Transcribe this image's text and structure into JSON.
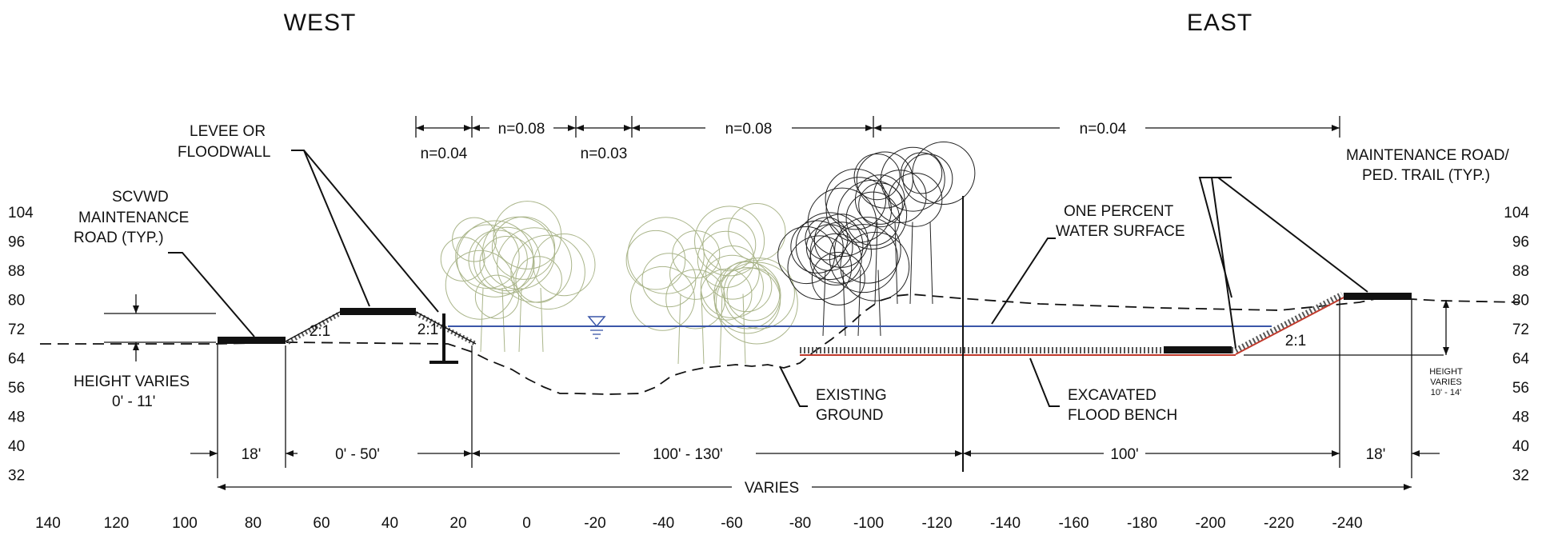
{
  "directions": {
    "west": "WEST",
    "east": "EAST"
  },
  "roughness": {
    "n1": "n=0.04",
    "n2": "n=0.08",
    "n3": "n=0.03",
    "n4": "n=0.08",
    "n5": "n=0.04"
  },
  "callouts": {
    "levee_l1": "LEVEE OR",
    "levee_l2": "FLOODWALL",
    "scvwd_l1": "SCVWD",
    "scvwd_l2": "MAINTENANCE",
    "scvwd_l3": "ROAD (TYP.)",
    "maint_l1": "MAINTENANCE ROAD/",
    "maint_l2": "PED. TRAIL (TYP.)",
    "water_l1": "ONE PERCENT",
    "water_l2": "WATER SURFACE",
    "ground_l1": "EXISTING",
    "ground_l2": "GROUND",
    "bench_l1": "EXCAVATED",
    "bench_l2": "FLOOD BENCH",
    "hv_left_l1": "HEIGHT VARIES",
    "hv_left_l2": "0' - 11'",
    "hv_right_l1": "HEIGHT",
    "hv_right_l2": "VARIES",
    "hv_right_l3": "10' - 14'",
    "slope_a": "2:1",
    "slope_b": "2:1",
    "slope_c": "2:1"
  },
  "dimensions": {
    "d1": "18'",
    "d2": "0' - 50'",
    "d3": "100' - 130'",
    "d4": "100'",
    "d5": "18'",
    "varies": "VARIES"
  },
  "x_axis": [
    "140",
    "120",
    "100",
    "80",
    "60",
    "40",
    "20",
    "0",
    "-20",
    "-40",
    "-60",
    "-80",
    "-100",
    "-120",
    "-140",
    "-160",
    "-180",
    "-200",
    "-220",
    "-240"
  ],
  "y_axis_left": [
    "104",
    "96",
    "88",
    "80",
    "72",
    "64",
    "56",
    "48",
    "40",
    "32"
  ],
  "y_axis_right": [
    "104",
    "96",
    "88",
    "80",
    "72",
    "64",
    "56",
    "48",
    "40",
    "32"
  ],
  "colors": {
    "water": "#3a56a8",
    "bench": "#c0392b",
    "trees_light": "#aab58a",
    "trees_dark": "#222222"
  }
}
